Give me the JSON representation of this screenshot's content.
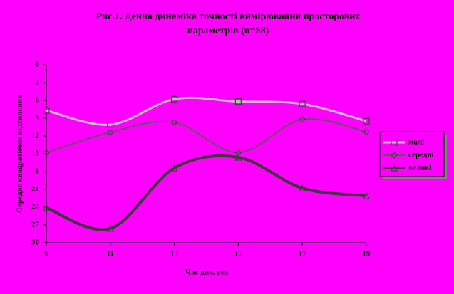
{
  "chart_data": {
    "type": "line",
    "title": "Рис.1. Денна динаміка точності вимірювання просторових параметрів (n=88)",
    "x_label": "Час дня, год",
    "y_label": "Середнє квадратичне відхилення",
    "x": [
      9,
      11,
      13,
      15,
      17,
      19
    ],
    "xlim": [
      9,
      19
    ],
    "xticks": [
      9,
      11,
      13,
      15,
      17,
      19
    ],
    "ylim": [
      30,
      0
    ],
    "yticks": [
      0,
      3,
      6,
      9,
      12,
      15,
      18,
      21,
      24,
      27,
      30
    ],
    "legend": "right",
    "series": [
      {
        "name": "малі",
        "color": "#c0c0c0",
        "marker": "square",
        "width": 3,
        "values": [
          7.7,
          10.1,
          5.8,
          6.2,
          6.6,
          9.5
        ]
      },
      {
        "name": "середні",
        "color": "#5a5a5a",
        "marker": "diamond",
        "width": 2,
        "values": [
          14.8,
          11.4,
          9.7,
          14.8,
          9.2,
          11.3
        ]
      },
      {
        "name": "великі",
        "color": "#3a3a3a",
        "marker": "triangle",
        "width": 4,
        "values": [
          24.1,
          27.6,
          17.4,
          15.6,
          20.8,
          22.1
        ]
      }
    ]
  }
}
